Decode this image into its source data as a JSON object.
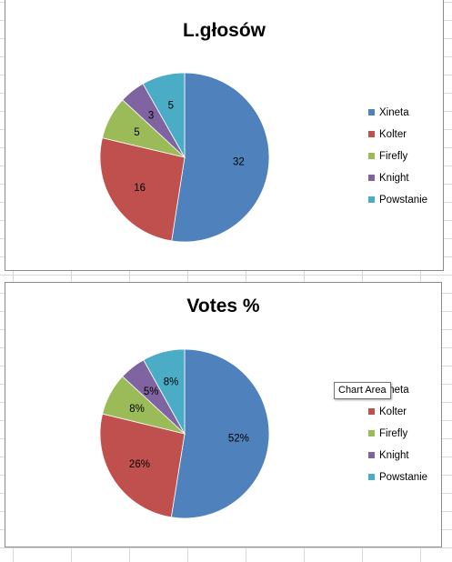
{
  "chart_data": [
    {
      "type": "pie",
      "title": "L.głosów",
      "categories": [
        "Xineta",
        "Kolter",
        "Firefly",
        "Knight",
        "Powstanie"
      ],
      "values": [
        32,
        16,
        5,
        3,
        5
      ],
      "data_labels": [
        "32",
        "16",
        "5",
        "3",
        "5"
      ],
      "colors": [
        "#4f81bd",
        "#c0504d",
        "#9bbb59",
        "#8064a2",
        "#4bacc6"
      ],
      "legend_position": "right"
    },
    {
      "type": "pie",
      "title": "Votes %",
      "categories": [
        "Xineta",
        "Kolter",
        "Firefly",
        "Knight",
        "Powstanie"
      ],
      "values": [
        52,
        26,
        8,
        5,
        8
      ],
      "data_labels": [
        "52%",
        "26%",
        "8%",
        "5%",
        "8%"
      ],
      "colors": [
        "#4f81bd",
        "#c0504d",
        "#9bbb59",
        "#8064a2",
        "#4bacc6"
      ],
      "legend_position": "right"
    }
  ],
  "tooltip": {
    "text": "Chart Area"
  }
}
